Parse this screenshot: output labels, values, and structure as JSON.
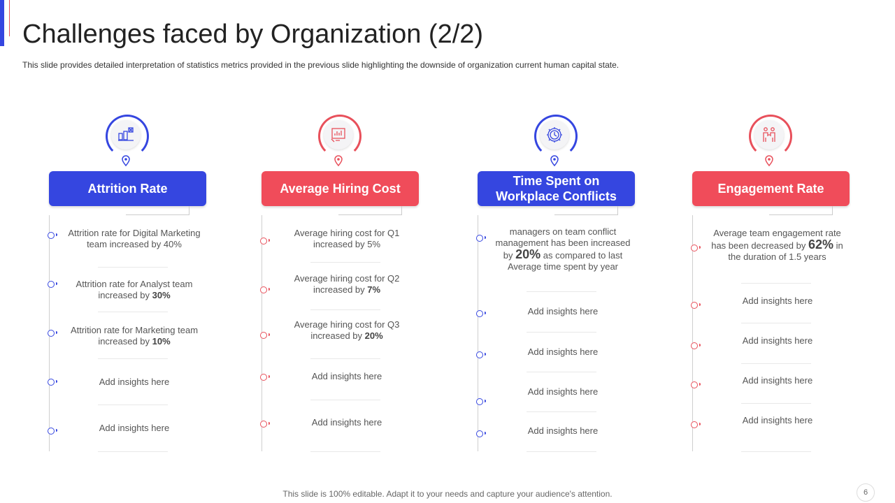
{
  "header": {
    "title": "Challenges faced by Organization (2/2)",
    "subtitle": "This slide provides detailed interpretation of statistics metrics provided in the previous slide highlighting the downside of organization current human capital state."
  },
  "colors": {
    "blue": "#3546e0",
    "red": "#f04c5a"
  },
  "columns": [
    {
      "icon": "attrition-icon",
      "heading": "Attrition Rate",
      "items": [
        {
          "text": "Attrition rate for Digital Marketing team increased by 40%"
        },
        {
          "prefix": "Attrition rate for Analyst team increased by ",
          "value": "30%"
        },
        {
          "prefix": "Attrition rate for Marketing team increased by ",
          "value": "10%"
        },
        {
          "text": "Add insights here"
        },
        {
          "text": "Add insights here"
        }
      ]
    },
    {
      "icon": "hiring-cost-icon",
      "heading": "Average Hiring Cost",
      "items": [
        {
          "text": "Average  hiring cost for Q1 increased by 5%"
        },
        {
          "prefix": "Average  hiring cost for Q2 increased by ",
          "value": "7%"
        },
        {
          "prefix": "Average  hiring cost for Q3 increased by ",
          "value": "20%"
        },
        {
          "text": "Add insights here"
        },
        {
          "text": "Add insights here"
        }
      ]
    },
    {
      "icon": "clock-gear-icon",
      "heading": "Time Spent on Workplace Conflicts",
      "items": [
        {
          "prefix": "managers  on team conflict management  has been increased by ",
          "value": "20%",
          "suffix": " as compared to last Average  time spent by year"
        },
        {
          "text": "Add insights here"
        },
        {
          "text": "Add insights here"
        },
        {
          "text": "Add insights here"
        },
        {
          "text": "Add insights here"
        }
      ]
    },
    {
      "icon": "handshake-icon",
      "heading": "Engagement Rate",
      "items": [
        {
          "prefix": "Average  team engagement  rate has been decreased by ",
          "value": "62%",
          "suffix": " in the duration of 1.5 years"
        },
        {
          "text": "Add insights here"
        },
        {
          "text": "Add insights here"
        },
        {
          "text": "Add insights here"
        },
        {
          "text": "Add insights here"
        }
      ]
    }
  ],
  "footer": {
    "text": "This slide is 100% editable. Adapt it to your needs and capture your audience's attention.",
    "page": "6"
  }
}
